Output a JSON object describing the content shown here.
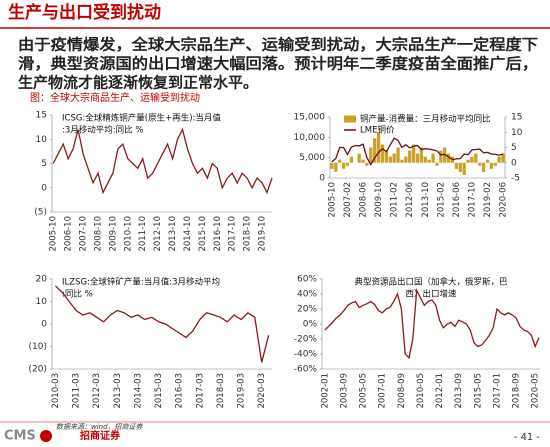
{
  "header": {
    "title": "生产与出口受到扰动"
  },
  "paragraph": [
    "由于疫情爆发，全球大宗品生产、运输受到扰动，大宗品生产一定程度下",
    "滑，典型资源国的出口增速大幅回落。预计明年二季度疫苗全面推广后，",
    "生产物流才能逐渐恢复到正常水平。"
  ],
  "caption": "图：全球大宗商品生产、运输受到扰动",
  "footer": {
    "logo_latin": "CMS",
    "logo_cn": "招商证券",
    "source": "数据来源：wind，招商证券",
    "page": "- 41 -"
  },
  "chart_data": [
    {
      "type": "line",
      "title": [
        "ICSG:全球精炼铜产量(原生+再生):当月值",
        ":3月移动平均:同比 %"
      ],
      "x": [
        "2005-10",
        "2006-02",
        "2006-06",
        "2006-10",
        "2007-02",
        "2007-06",
        "2007-10",
        "2008-02",
        "2008-06",
        "2008-10",
        "2009-02",
        "2009-06",
        "2009-10",
        "2010-02",
        "2010-06",
        "2010-10",
        "2011-02",
        "2011-06",
        "2011-10",
        "2012-02",
        "2012-06",
        "2012-10",
        "2013-02",
        "2013-06",
        "2013-10",
        "2014-02",
        "2014-06",
        "2014-10",
        "2015-02",
        "2015-06",
        "2015-10",
        "2016-02",
        "2016-06",
        "2016-10",
        "2017-02",
        "2017-06",
        "2017-10",
        "2018-02",
        "2018-06",
        "2018-10",
        "2019-02",
        "2019-06",
        "2019-10",
        "2020-02",
        "2020-06"
      ],
      "series": [
        {
          "color": "#8b1a1a",
          "values": [
            5,
            7,
            9,
            6,
            8,
            12,
            7,
            4,
            1,
            3,
            -1,
            1,
            3,
            8,
            9,
            6,
            5,
            4,
            6,
            2,
            3,
            5,
            7,
            9,
            6,
            10,
            12,
            8,
            5,
            3,
            4,
            2,
            5,
            4,
            0,
            2,
            3,
            1,
            3,
            2,
            0,
            2,
            1,
            -1,
            2
          ]
        }
      ],
      "xlim": [
        "2005-09",
        "2020-06"
      ],
      "xticks": [
        "2005-10",
        "2006-10",
        "2007-10",
        "2008-10",
        "2009-10",
        "2010-10",
        "2011-10",
        "2012-10",
        "2013-10",
        "2014-10",
        "2015-10",
        "2016-10",
        "2017-10",
        "2018-10",
        "2019-10"
      ],
      "ylim": [
        -5,
        15
      ],
      "yticks": [
        15,
        10,
        5,
        0,
        {
          "value": -5,
          "label": "(5)"
        }
      ]
    },
    {
      "type": "bar_line",
      "x": [
        "2005-10",
        "2006-02",
        "2006-06",
        "2006-10",
        "2007-02",
        "2007-06",
        "2007-10",
        "2008-02",
        "2008-06",
        "2008-10",
        "2009-02",
        "2009-06",
        "2009-10",
        "2010-02",
        "2010-06",
        "2010-10",
        "2011-02",
        "2011-06",
        "2011-10",
        "2012-02",
        "2012-06",
        "2012-10",
        "2013-02",
        "2013-06",
        "2013-10",
        "2014-02",
        "2014-06",
        "2014-10",
        "2015-02",
        "2015-06",
        "2015-10",
        "2016-02",
        "2016-06",
        "2016-10",
        "2017-02",
        "2017-06",
        "2017-10",
        "2018-02",
        "2018-06",
        "2018-10",
        "2019-02",
        "2019-06",
        "2019-10",
        "2020-02",
        "2020-06"
      ],
      "series": [
        {
          "name": "铜产量-消费量：三月移动平均同比",
          "kind": "bar",
          "axis": "y2",
          "color": "#c9a227",
          "values": [
            -2,
            -3,
            1,
            -2,
            -1,
            2,
            0,
            3,
            1,
            -1,
            5,
            8,
            10,
            6,
            4,
            2,
            3,
            5,
            1,
            2,
            4,
            6,
            3,
            5,
            2,
            1,
            3,
            -1,
            4,
            5,
            3,
            2,
            -2,
            -3,
            -4,
            1,
            2,
            3,
            -1,
            -3,
            1,
            -2,
            -1,
            2,
            3
          ]
        },
        {
          "name": "LME铜价",
          "kind": "line",
          "color": "#6b0f1a",
          "values": [
            4000,
            4800,
            7500,
            7500,
            5800,
            7600,
            8000,
            7900,
            8300,
            5000,
            3300,
            5000,
            6300,
            7200,
            6500,
            8200,
            9800,
            9200,
            7500,
            8200,
            7400,
            7800,
            8000,
            7000,
            7200,
            7100,
            6900,
            6700,
            5700,
            5800,
            5200,
            4500,
            4700,
            4800,
            5900,
            5700,
            6900,
            7000,
            7100,
            6200,
            6300,
            5900,
            5800,
            5600,
            5900
          ]
        }
      ],
      "xlim": [
        "2005-08",
        "2020-08"
      ],
      "xticks": [
        "2005-10",
        "2007-02",
        "2008-06",
        "2009-10",
        "2011-02",
        "2012-06",
        "2013-10",
        "2015-02",
        "2016-06",
        "2017-10",
        "2019-02",
        "2020-06"
      ],
      "ylim": [
        0,
        15000
      ],
      "yticks": [
        {
          "value": 15000,
          "label": "15,000"
        },
        {
          "value": 10000,
          "label": "10,000"
        },
        {
          "value": 5000,
          "label": "5,000"
        },
        0
      ],
      "y2lim": [
        -5,
        15
      ],
      "y2ticks": [
        15,
        10,
        5,
        0,
        -5
      ]
    },
    {
      "type": "line",
      "title": [
        "ILZSG:全球锌矿产量:当月值:3月移动平均",
        ":同比 %"
      ],
      "x": [
        "2010-03",
        "2010-07",
        "2010-11",
        "2011-03",
        "2011-07",
        "2011-11",
        "2012-03",
        "2012-07",
        "2012-11",
        "2013-03",
        "2013-07",
        "2013-11",
        "2014-03",
        "2014-07",
        "2014-11",
        "2015-03",
        "2015-07",
        "2015-11",
        "2016-03",
        "2016-07",
        "2016-11",
        "2017-03",
        "2017-07",
        "2017-11",
        "2018-03",
        "2018-07",
        "2018-11",
        "2019-03",
        "2019-07",
        "2019-11",
        "2020-03",
        "2020-07"
      ],
      "series": [
        {
          "color": "#8b1a1a",
          "values": [
            17,
            14,
            10,
            6,
            4,
            5,
            3,
            1,
            4,
            6,
            5,
            3,
            4,
            2,
            3,
            1,
            0,
            -2,
            -4,
            -6,
            -3,
            2,
            5,
            4,
            3,
            1,
            4,
            2,
            5,
            3,
            -17,
            -5
          ]
        }
      ],
      "xlim": [
        "2010-01",
        "2020-09"
      ],
      "xticks": [
        "2010-03",
        "2011-03",
        "2012-03",
        "2013-03",
        "2014-03",
        "2015-03",
        "2016-03",
        "2017-03",
        "2018-03",
        "2019-03",
        "2020-03"
      ],
      "ylim": [
        -20,
        20
      ],
      "yticks": [
        20,
        10,
        0,
        {
          "value": -10,
          "label": "(10)"
        },
        {
          "value": -20,
          "label": "(20)"
        }
      ]
    },
    {
      "type": "line",
      "title": [
        "典型资源品出口国（加拿大，俄罗斯，巴",
        "西）出口增速"
      ],
      "x": [
        "2002-01",
        "2002-05",
        "2002-09",
        "2003-01",
        "2003-05",
        "2003-09",
        "2004-01",
        "2004-05",
        "2004-09",
        "2005-01",
        "2005-05",
        "2005-09",
        "2006-01",
        "2006-05",
        "2006-09",
        "2007-01",
        "2007-05",
        "2007-09",
        "2008-01",
        "2008-05",
        "2008-09",
        "2009-01",
        "2009-05",
        "2009-09",
        "2010-01",
        "2010-05",
        "2010-09",
        "2011-01",
        "2011-05",
        "2011-09",
        "2012-01",
        "2012-05",
        "2012-09",
        "2013-01",
        "2013-05",
        "2013-09",
        "2014-01",
        "2014-05",
        "2014-09",
        "2015-01",
        "2015-05",
        "2015-09",
        "2016-01",
        "2016-05",
        "2016-09",
        "2017-01",
        "2017-05",
        "2017-09",
        "2018-01",
        "2018-05",
        "2018-09",
        "2019-01",
        "2019-05",
        "2019-09",
        "2020-01",
        "2020-05",
        "2020-09"
      ],
      "series": [
        {
          "color": "#8b1a1a",
          "values": [
            -8,
            -3,
            2,
            8,
            12,
            18,
            25,
            28,
            30,
            22,
            25,
            27,
            30,
            26,
            18,
            15,
            20,
            22,
            30,
            40,
            20,
            -40,
            -45,
            -20,
            45,
            35,
            25,
            30,
            32,
            25,
            5,
            -5,
            0,
            2,
            -3,
            5,
            3,
            0,
            -8,
            -25,
            -30,
            -28,
            -22,
            -15,
            -5,
            20,
            15,
            12,
            15,
            12,
            8,
            -3,
            -8,
            -10,
            -15,
            -30,
            -18
          ]
        }
      ],
      "xlim": [
        "2001-10",
        "2020-10"
      ],
      "xticks": [
        "2002-01",
        "2003-09",
        "2005-05",
        "2007-01",
        "2008-09",
        "2010-05",
        "2012-01",
        "2013-09",
        "2015-05",
        "2017-01",
        "2018-09",
        "2020-05"
      ],
      "ylim": [
        -60,
        60
      ],
      "yticks": [
        {
          "value": 60,
          "label": "60%"
        },
        {
          "value": 40,
          "label": "40%"
        },
        {
          "value": 20,
          "label": "20%"
        },
        {
          "value": 0,
          "label": "0%"
        },
        {
          "value": -20,
          "label": "-20%"
        },
        {
          "value": -40,
          "label": "-40%"
        },
        {
          "value": -60,
          "label": "-60%"
        }
      ]
    }
  ]
}
